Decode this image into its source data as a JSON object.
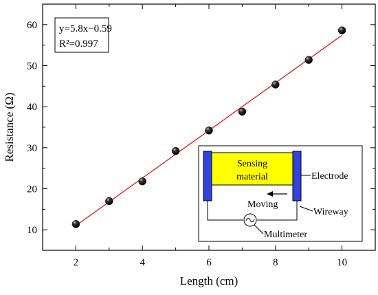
{
  "chart_data": {
    "type": "scatter",
    "xlabel": "Length (cm)",
    "ylabel": "Resistance (Ω)",
    "xlim": [
      1,
      11
    ],
    "ylim": [
      5,
      65
    ],
    "x_ticks": [
      "2",
      "4",
      "6",
      "8",
      "10"
    ],
    "y_ticks": [
      "10",
      "20",
      "30",
      "40",
      "50",
      "60"
    ],
    "grid": false,
    "series": [
      {
        "x": [
          2,
          3,
          4,
          5,
          6,
          7,
          8,
          9,
          10
        ],
        "y": [
          11.4,
          17.0,
          21.8,
          29.2,
          34.2,
          38.8,
          45.4,
          51.4,
          58.6
        ]
      }
    ],
    "fit": {
      "slope": 5.8,
      "intercept": -0.59,
      "x_range": [
        2,
        10
      ],
      "color": "#e41a1c",
      "equation": "y=5.8x−0.59",
      "r2_label": "R²=0.997"
    },
    "marker_color": "#111111"
  },
  "inset": {
    "sensing_line1": "Sensing",
    "sensing_line2": "material",
    "electrode": "Electrode",
    "moving": "Moving",
    "wireway": "Wireway",
    "multimeter": "Multimeter",
    "sensing_fill": "#ffff00",
    "electrode_fill": "#3344dd"
  }
}
